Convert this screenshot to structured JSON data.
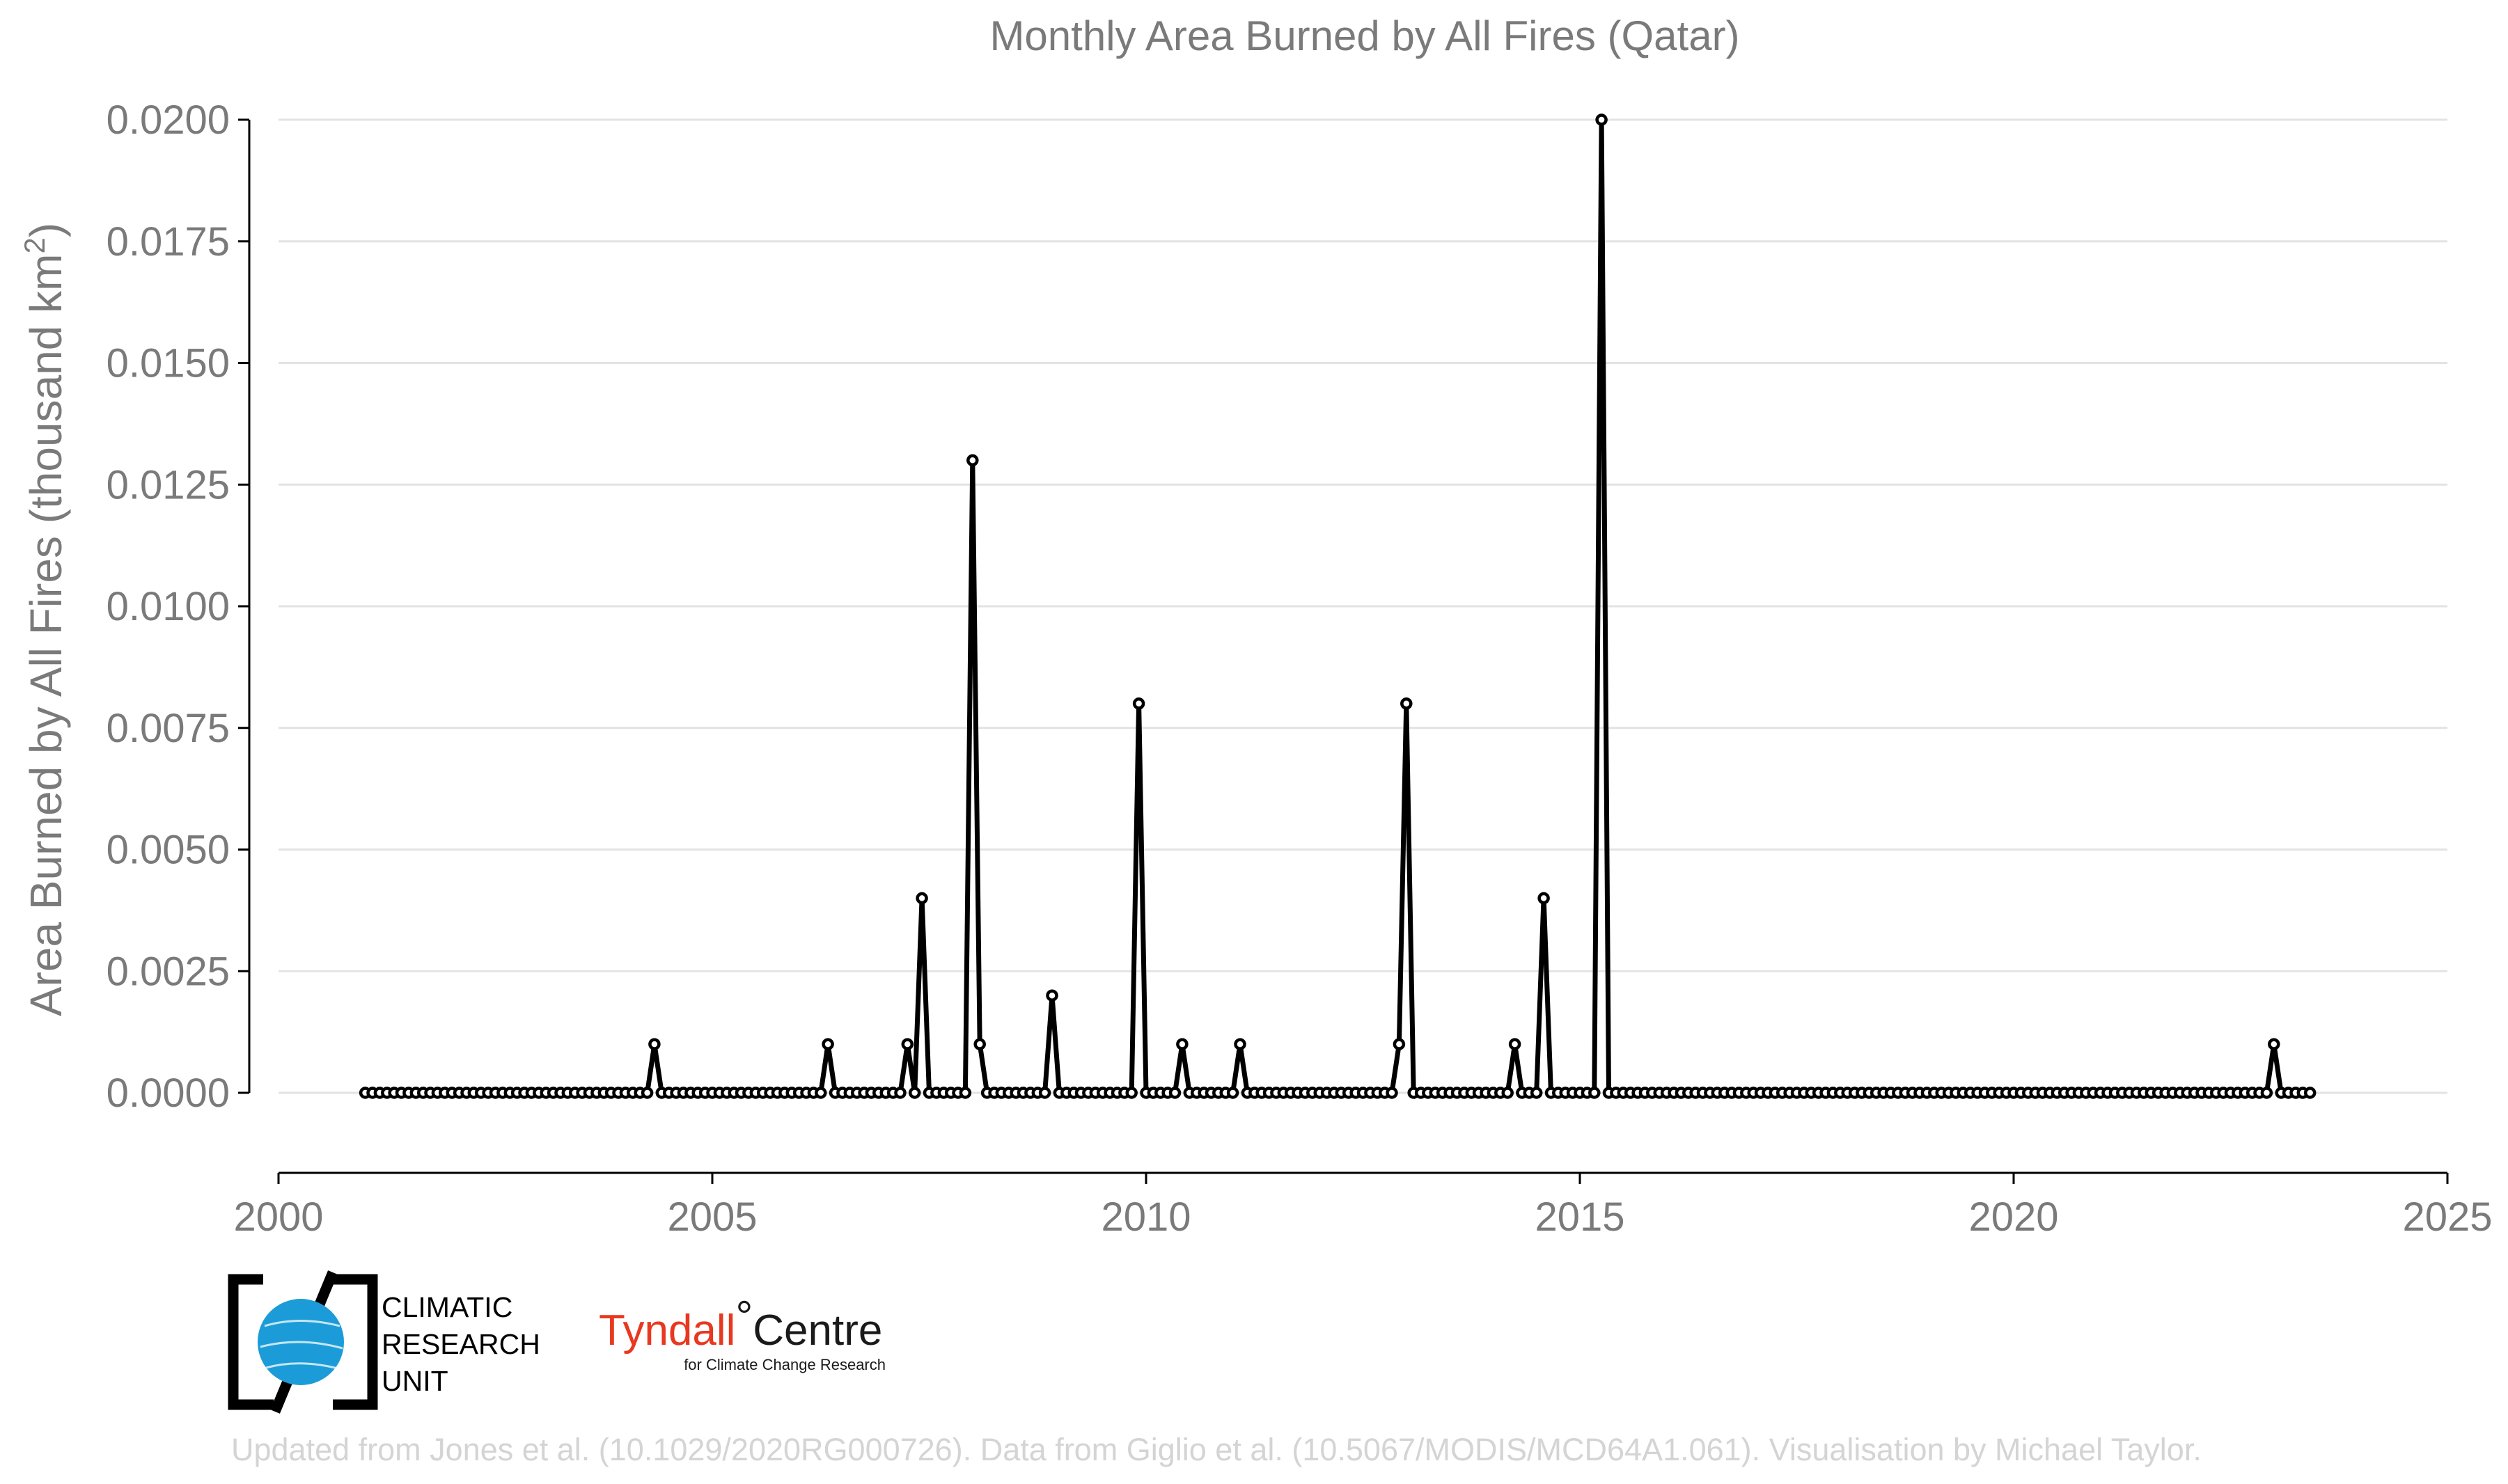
{
  "chart_data": {
    "type": "line",
    "title": "Monthly Area Burned by All Fires (Qatar)",
    "ylabel": "Area Burned by All Fires (thousand km",
    "ylabel_superscript": "2",
    "ylabel_suffix": ")",
    "xlim": [
      2000,
      2025
    ],
    "ylim": [
      0,
      0.02
    ],
    "x_ticks": [
      "2000",
      "2005",
      "2010",
      "2015",
      "2020",
      "2025"
    ],
    "y_ticks": [
      "0.0000",
      "0.0025",
      "0.0050",
      "0.0075",
      "0.0100",
      "0.0125",
      "0.0150",
      "0.0175",
      "0.0200"
    ],
    "grid": true,
    "series": [
      {
        "start": "2001-01",
        "end": "2023-06",
        "frequency": "monthly",
        "baseline_value": 0,
        "nonzero_values": [
          {
            "date": "2004-05",
            "value": 0.001
          },
          {
            "date": "2006-05",
            "value": 0.001
          },
          {
            "date": "2007-04",
            "value": 0.001
          },
          {
            "date": "2007-06",
            "value": 0.004
          },
          {
            "date": "2008-01",
            "value": 0.013
          },
          {
            "date": "2008-02",
            "value": 0.001
          },
          {
            "date": "2008-12",
            "value": 0.002
          },
          {
            "date": "2009-12",
            "value": 0.008
          },
          {
            "date": "2010-06",
            "value": 0.001
          },
          {
            "date": "2011-02",
            "value": 0.001
          },
          {
            "date": "2012-12",
            "value": 0.001
          },
          {
            "date": "2013-01",
            "value": 0.008
          },
          {
            "date": "2014-04",
            "value": 0.001
          },
          {
            "date": "2014-08",
            "value": 0.004
          },
          {
            "date": "2015-04",
            "value": 0.02
          },
          {
            "date": "2023-01",
            "value": 0.001
          }
        ]
      }
    ]
  },
  "logos": {
    "cru_line1": "CLIMATIC",
    "cru_line2": "RESEARCH",
    "cru_line3": "UNIT",
    "tyndall_a": "Tyndall",
    "tyndall_deg": "°",
    "tyndall_b": "Centre",
    "tyndall_sub": "for Climate Change Research"
  },
  "credit": "Updated from Jones et al. (10.1029/2020RG000726). Data from Giglio et al. (10.5067/MODIS/MCD64A1.061). Visualisation by Michael Taylor.",
  "colors": {
    "series": "#000000",
    "marker_fill": "#ffffff",
    "text": "#7a7a7a",
    "grid": "#e3e3e3",
    "cru_globe": "#1b9cd8",
    "tyndall_red": "#e8381f",
    "credit": "#d4d4d4"
  }
}
